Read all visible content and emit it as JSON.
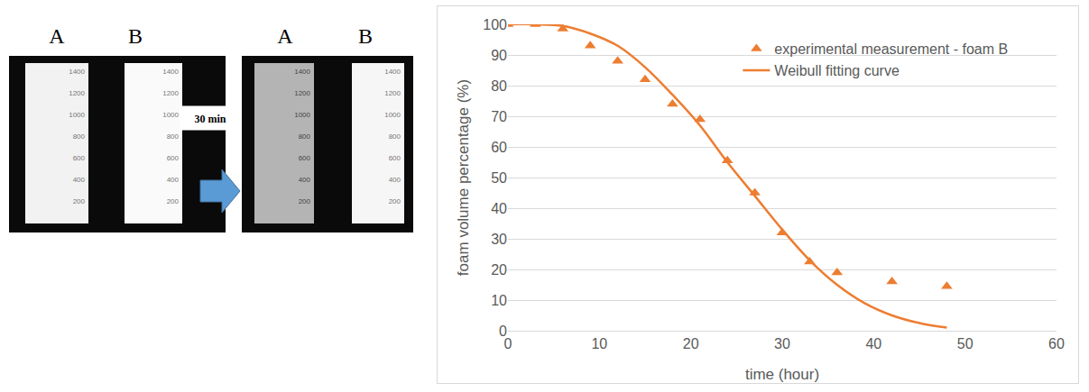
{
  "photos": {
    "before": {
      "labels": [
        "A",
        "B"
      ]
    },
    "interval": "30 min",
    "after": {
      "labels": [
        "A",
        "B"
      ]
    },
    "scale_marks": [
      1400,
      1200,
      1000,
      800,
      600,
      400,
      200
    ]
  },
  "chart_data": {
    "type": "scatter",
    "xlabel": "time (hour)",
    "ylabel": "foam volume percentage (%)",
    "xlim": [
      0,
      60
    ],
    "xticks": [
      0,
      10,
      20,
      30,
      40,
      50,
      60
    ],
    "ylim": [
      0,
      100
    ],
    "yticks": [
      0,
      10,
      20,
      30,
      40,
      50,
      60,
      70,
      80,
      90,
      100
    ],
    "grid": "y",
    "legend": "upper right",
    "series": [
      {
        "name": "experimental measurement - foam B",
        "type": "scatter",
        "marker": "triangle",
        "color": "#ed7d31",
        "x": [
          0,
          3,
          6,
          9,
          12,
          15,
          18,
          21,
          24,
          27,
          30,
          33,
          36,
          42,
          48
        ],
        "values": [
          100,
          100,
          98.5,
          93,
          88,
          82,
          74,
          69,
          55.5,
          45,
          32,
          22.5,
          19,
          16,
          14.5
        ]
      },
      {
        "name": "Weibull fitting curve",
        "type": "line",
        "line_style": "solid",
        "color": "#ed7d31",
        "x": [
          0,
          3,
          6,
          9,
          12,
          15,
          18,
          21,
          24,
          27,
          30,
          33,
          36,
          39,
          42,
          45,
          48
        ],
        "values": [
          100,
          100,
          99.5,
          97,
          93,
          86,
          77,
          67,
          55,
          44,
          33,
          23,
          15,
          9,
          5,
          2.5,
          1
        ]
      }
    ]
  }
}
